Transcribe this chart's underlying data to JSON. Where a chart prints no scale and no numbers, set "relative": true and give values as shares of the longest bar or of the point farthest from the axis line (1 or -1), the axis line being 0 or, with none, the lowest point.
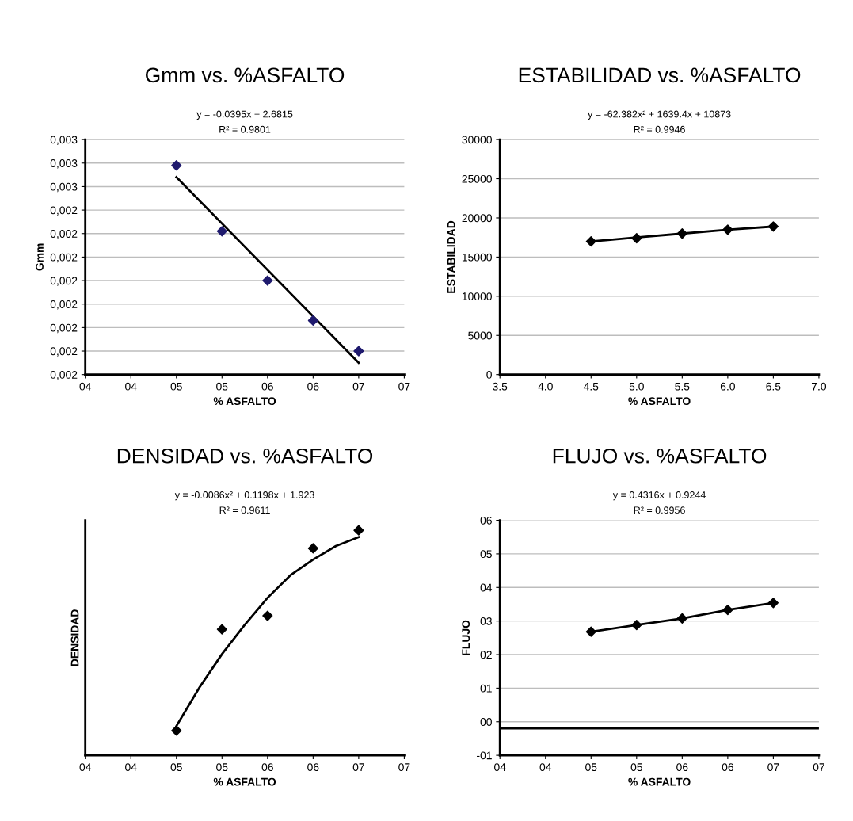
{
  "chart_data": [
    {
      "type": "scatter",
      "title": "Gmm vs. %ASFALTO",
      "xlabel": "% ASFALTO",
      "ylabel": "Gmm",
      "annotations": [
        "y = -0.0395x + 2.6815",
        "R² = 0.9801"
      ],
      "x": [
        4.5,
        5.0,
        5.5,
        6.0,
        6.5
      ],
      "series": [
        {
          "color": "#1f1a6e",
          "values": [
            0.002509,
            0.002481,
            0.00246,
            0.002443,
            0.00243
          ]
        },
        {
          "type": "line",
          "color": "#000000",
          "x": [
            4.5,
            6.5
          ],
          "values": [
            0.002504,
            0.002425
          ],
          "marker": "none"
        }
      ],
      "xlim": [
        3.5,
        7.0
      ],
      "xticks": [
        {
          "value": 3.5,
          "label": "04"
        },
        {
          "value": 4.0,
          "label": "04"
        },
        {
          "value": 4.5,
          "label": "05"
        },
        {
          "value": 5.0,
          "label": "05"
        },
        {
          "value": 5.5,
          "label": "06"
        },
        {
          "value": 6.0,
          "label": "06"
        },
        {
          "value": 6.5,
          "label": "07"
        },
        {
          "value": 7.0,
          "label": "07"
        }
      ],
      "ylim": [
        0.00242,
        0.00252
      ],
      "yticks": [
        {
          "value": 0.00242,
          "label": "0,002"
        },
        {
          "value": 0.00243,
          "label": "0,002"
        },
        {
          "value": 0.00244,
          "label": "0,002"
        },
        {
          "value": 0.00245,
          "label": "0,002"
        },
        {
          "value": 0.00246,
          "label": "0,002"
        },
        {
          "value": 0.00247,
          "label": "0,002"
        },
        {
          "value": 0.00248,
          "label": "0,002"
        },
        {
          "value": 0.00249,
          "label": "0,002"
        },
        {
          "value": 0.0025,
          "label": "0,003"
        },
        {
          "value": 0.00251,
          "label": "0,003"
        },
        {
          "value": 0.00252,
          "label": "0,003"
        }
      ],
      "grid": "y",
      "marker": "diamond"
    },
    {
      "type": "scatter",
      "title": "ESTABILIDAD vs. %ASFALTO",
      "xlabel": "% ASFALTO",
      "ylabel": "ESTABILIDAD",
      "annotations": [
        "y = -62.382x² + 1639.4x + 10873",
        "R² = 0.9946"
      ],
      "x": [
        4.5,
        5.0,
        5.5,
        6.0,
        6.5
      ],
      "series": [
        {
          "color": "#000000",
          "values": [
            17000,
            17400,
            18000,
            18500,
            18900
          ]
        },
        {
          "type": "line",
          "color": "#000000",
          "values": [
            17000,
            17500,
            18000,
            18500,
            18900
          ],
          "marker": "none"
        }
      ],
      "xlim": [
        3.5,
        7.0
      ],
      "xticks": [
        {
          "value": 3.5,
          "label": "3.5"
        },
        {
          "value": 4.0,
          "label": "4.0"
        },
        {
          "value": 4.5,
          "label": "4.5"
        },
        {
          "value": 5.0,
          "label": "5.0"
        },
        {
          "value": 5.5,
          "label": "5.5"
        },
        {
          "value": 6.0,
          "label": "6.0"
        },
        {
          "value": 6.5,
          "label": "6.5"
        },
        {
          "value": 7.0,
          "label": "7.0"
        }
      ],
      "ylim": [
        0,
        30000
      ],
      "yticks": [
        0,
        5000,
        10000,
        15000,
        20000,
        25000,
        30000
      ],
      "grid": "y",
      "marker": "diamond"
    },
    {
      "type": "scatter",
      "title": "DENSIDAD vs. %ASFALTO",
      "xlabel": "% ASFALTO",
      "ylabel": "DENSIDAD",
      "annotations": [
        "y = -0.0086x² + 0.1198x + 1.923",
        "R² = 0.9611"
      ],
      "x": [
        4.5,
        5.0,
        5.5,
        6.0,
        6.5
      ],
      "series": [
        {
          "color": "#000000",
          "values": [
            0.11,
            0.56,
            0.62,
            0.92,
            1.0
          ]
        },
        {
          "type": "line",
          "color": "#000000",
          "x": [
            4.5,
            4.75,
            5.0,
            5.25,
            5.5,
            5.75,
            6.0,
            6.25,
            6.5
          ],
          "values": [
            0.13,
            0.3,
            0.45,
            0.58,
            0.7,
            0.8,
            0.87,
            0.93,
            0.97
          ],
          "marker": "none"
        }
      ],
      "relative": true,
      "xlim": [
        3.5,
        7.0
      ],
      "xticks": [
        {
          "value": 3.5,
          "label": "04"
        },
        {
          "value": 4.0,
          "label": "04"
        },
        {
          "value": 4.5,
          "label": "05"
        },
        {
          "value": 5.0,
          "label": "05"
        },
        {
          "value": 5.5,
          "label": "06"
        },
        {
          "value": 6.0,
          "label": "06"
        },
        {
          "value": 6.5,
          "label": "07"
        },
        {
          "value": 7.0,
          "label": "07"
        }
      ],
      "grid": "y",
      "marker": "diamond"
    },
    {
      "type": "scatter",
      "title": "FLUJO vs. %ASFALTO",
      "xlabel": "% ASFALTO",
      "ylabel": "FLUJO",
      "annotations": [
        "y = 0.4316x + 0.9244",
        "R² = 0.9956"
      ],
      "x": [
        4.5,
        5.0,
        5.5,
        6.0,
        6.5
      ],
      "series": [
        {
          "color": "#000000",
          "values": [
            2.68,
            2.88,
            3.08,
            3.33,
            3.54
          ]
        },
        {
          "type": "line",
          "color": "#000000",
          "values": [
            2.68,
            2.88,
            3.08,
            3.33,
            3.54
          ],
          "marker": "none"
        }
      ],
      "xlim": [
        3.5,
        7.0
      ],
      "xticks": [
        {
          "value": 3.5,
          "label": "04"
        },
        {
          "value": 4.0,
          "label": "04"
        },
        {
          "value": 4.5,
          "label": "05"
        },
        {
          "value": 5.0,
          "label": "05"
        },
        {
          "value": 5.5,
          "label": "06"
        },
        {
          "value": 6.0,
          "label": "06"
        },
        {
          "value": 6.5,
          "label": "07"
        },
        {
          "value": 7.0,
          "label": "07"
        }
      ],
      "ylim": [
        -1,
        6
      ],
      "yticks": [
        {
          "value": -1,
          "label": "-01"
        },
        {
          "value": 0,
          "label": "00"
        },
        {
          "value": 1,
          "label": "01"
        },
        {
          "value": 2,
          "label": "02"
        },
        {
          "value": 3,
          "label": "03"
        },
        {
          "value": 4,
          "label": "04"
        },
        {
          "value": 5,
          "label": "05"
        },
        {
          "value": 6,
          "label": "06"
        }
      ],
      "ref_lines": [
        {
          "axis": "y",
          "value": -0.2,
          "color": "#000000"
        }
      ],
      "grid": "y",
      "marker": "diamond"
    }
  ]
}
